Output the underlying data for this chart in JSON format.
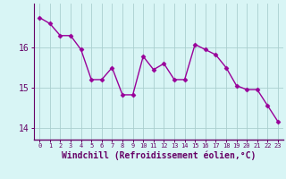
{
  "x": [
    0,
    1,
    2,
    3,
    4,
    5,
    6,
    7,
    8,
    9,
    10,
    11,
    12,
    13,
    14,
    15,
    16,
    17,
    18,
    19,
    20,
    21,
    22,
    23
  ],
  "y": [
    16.75,
    16.6,
    16.3,
    16.3,
    15.95,
    15.2,
    15.2,
    15.5,
    14.82,
    14.82,
    15.78,
    15.45,
    15.6,
    15.2,
    15.2,
    16.08,
    15.95,
    15.82,
    15.5,
    15.05,
    14.95,
    14.95,
    14.55,
    14.15
  ],
  "line_color": "#990099",
  "marker": "D",
  "markersize": 2.5,
  "linewidth": 1.0,
  "bg_color": "#d8f5f5",
  "grid_color": "#aacfcf",
  "axis_color": "#660066",
  "tick_color": "#660066",
  "xlabel": "Windchill (Refroidissement éolien,°C)",
  "xlabel_fontsize": 7,
  "ytick_labels": [
    "14",
    "15",
    "16"
  ],
  "ytick_vals": [
    14,
    15,
    16
  ],
  "xtick_vals": [
    0,
    1,
    2,
    3,
    4,
    5,
    6,
    7,
    8,
    9,
    10,
    11,
    12,
    13,
    14,
    15,
    16,
    17,
    18,
    19,
    20,
    21,
    22,
    23
  ],
  "ylim": [
    13.7,
    17.1
  ],
  "xlim": [
    -0.5,
    23.5
  ]
}
